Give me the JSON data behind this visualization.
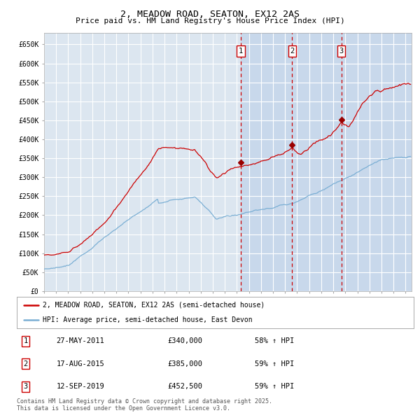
{
  "title": "2, MEADOW ROAD, SEATON, EX12 2AS",
  "subtitle": "Price paid vs. HM Land Registry's House Price Index (HPI)",
  "background_color": "#ffffff",
  "plot_bg_color": "#dce6f0",
  "grid_color": "#ffffff",
  "ylim": [
    0,
    680000
  ],
  "yticks": [
    0,
    50000,
    100000,
    150000,
    200000,
    250000,
    300000,
    350000,
    400000,
    450000,
    500000,
    550000,
    600000,
    650000
  ],
  "ytick_labels": [
    "£0",
    "£50K",
    "£100K",
    "£150K",
    "£200K",
    "£250K",
    "£300K",
    "£350K",
    "£400K",
    "£450K",
    "£500K",
    "£550K",
    "£600K",
    "£650K"
  ],
  "red_line_color": "#cc0000",
  "blue_line_color": "#7bafd4",
  "vline_color": "#cc0000",
  "shade_color": "#c8d8eb",
  "legend_label_red": "2, MEADOW ROAD, SEATON, EX12 2AS (semi-detached house)",
  "legend_label_blue": "HPI: Average price, semi-detached house, East Devon",
  "table_data": [
    {
      "num": "1",
      "date": "27-MAY-2011",
      "price": "£340,000",
      "hpi": "58% ↑ HPI"
    },
    {
      "num": "2",
      "date": "17-AUG-2015",
      "price": "£385,000",
      "hpi": "59% ↑ HPI"
    },
    {
      "num": "3",
      "date": "12-SEP-2019",
      "price": "£452,500",
      "hpi": "59% ↑ HPI"
    }
  ],
  "footnote": "Contains HM Land Registry data © Crown copyright and database right 2025.\nThis data is licensed under the Open Government Licence v3.0.",
  "x_start_year": 1995,
  "x_end_year": 2025
}
